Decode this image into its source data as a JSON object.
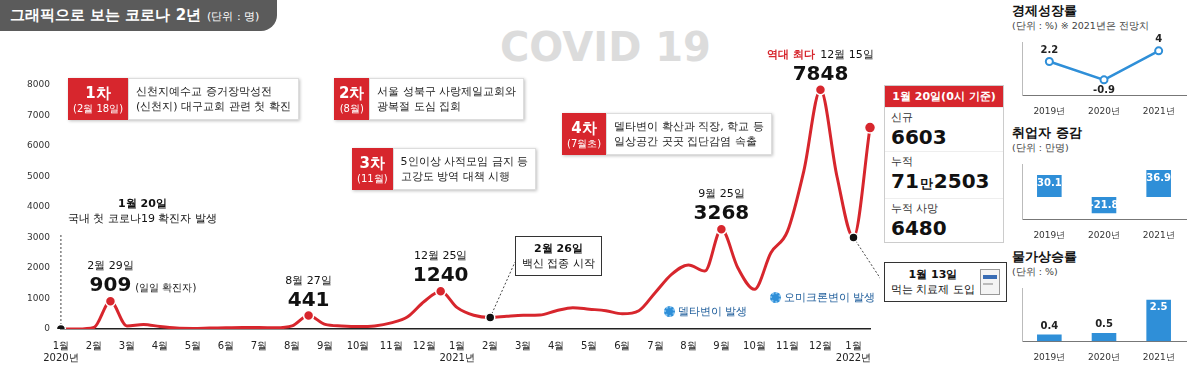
{
  "title": "그래픽으로 보는 코로나 2년",
  "subtitle": "(단위 : 명)",
  "watermark": "COVID 19",
  "chart_data": [
    {
      "type": "line",
      "categories": [
        "1월",
        null,
        "2월",
        null,
        "3월",
        null,
        "4월",
        null,
        "5월",
        null,
        "6월",
        null,
        "7월",
        null,
        "8월",
        null,
        "9월",
        null,
        "10월",
        null,
        "11월",
        null,
        "12월",
        null,
        "1월",
        null,
        "2월",
        null,
        "3월",
        null,
        "4월",
        null,
        "5월",
        null,
        "6월",
        null,
        "7월",
        null,
        "8월",
        null,
        "9월",
        null,
        "10월",
        null,
        "11월",
        null,
        "12월",
        null,
        "1월",
        null
      ],
      "x_year_labels": [
        "2020년",
        "2021년",
        "2022년"
      ],
      "values": [
        0,
        0,
        50,
        909,
        100,
        150,
        80,
        30,
        20,
        30,
        40,
        50,
        50,
        40,
        100,
        441,
        150,
        100,
        80,
        100,
        200,
        400,
        900,
        1240,
        700,
        450,
        380,
        420,
        450,
        460,
        600,
        700,
        650,
        600,
        500,
        600,
        1200,
        1800,
        2100,
        1900,
        3268,
        2000,
        1300,
        2500,
        3200,
        5200,
        7848,
        5000,
        3000,
        6603
      ],
      "color": "#d7262d",
      "ylim": [
        0,
        8000
      ],
      "yticks": [
        0,
        1000,
        2000,
        3000,
        4000,
        5000,
        6000,
        7000,
        8000
      ],
      "grid": false,
      "peaks": [
        {
          "date": "2월 29일",
          "value": 909,
          "note": "(일일 확진자)"
        },
        {
          "date": "8월 27일",
          "value": 441
        },
        {
          "date": "12월 25일",
          "value": 1240
        },
        {
          "date": "9월 25일",
          "value": 3268
        },
        {
          "date": "12월 15일",
          "value": 7848,
          "prefix": "역대 최다"
        }
      ]
    },
    {
      "type": "line",
      "title": "경제성장률",
      "subtitle": "(단위 : %) ※ 2021년은 전망치",
      "categories": [
        "2019년",
        "2020년",
        "2021년"
      ],
      "values": [
        2.2,
        -0.9,
        4
      ],
      "color": "#2f8fd8",
      "marker": "circle",
      "ylim": [
        -3.5,
        5.5
      ],
      "grid": false,
      "data_labels": true,
      "tick_labels": "x"
    },
    {
      "type": "bar",
      "title": "취업자 증감",
      "subtitle": "(단위 : 만명)",
      "categories": [
        "2019년",
        "2020년",
        "2021년"
      ],
      "values": [
        30.1,
        -21.8,
        36.9
      ],
      "color": "#2f8fd8",
      "ylim": [
        -30,
        45
      ],
      "grid": false,
      "data_labels": true,
      "tick_labels": "x"
    },
    {
      "type": "bar",
      "title": "물가상승률",
      "subtitle": "(단위 : %)",
      "categories": [
        "2019년",
        "2020년",
        "2021년"
      ],
      "values": [
        0.4,
        0.5,
        2.5
      ],
      "color": "#2f8fd8",
      "ylim": [
        0,
        3.2
      ],
      "grid": false,
      "data_labels": true,
      "tick_labels": "x"
    }
  ],
  "waves": [
    {
      "label": "1차",
      "date": "(2월 18일)",
      "lines": [
        "신천지예수교 증거장막성전",
        "(신천지) 대구교회 관련 첫 확진"
      ]
    },
    {
      "label": "2차",
      "date": "(8월)",
      "lines": [
        "서울 성북구 사랑제일교회와",
        "광복절 도심 집회"
      ]
    },
    {
      "label": "3차",
      "date": "(11월)",
      "lines": [
        "5인이상 사적모임 금지 등",
        "고강도 방역 대책 시행"
      ]
    },
    {
      "label": "4차",
      "date": "(7월초)",
      "lines": [
        "델타변이 확산과 직장, 학교 등",
        "일상공간 곳곳 집단감염 속출"
      ]
    }
  ],
  "events": [
    {
      "date": "1월 20일",
      "text": "국내 첫 코로나19 확진자 발생",
      "value": 0
    },
    {
      "date": "2월 26일",
      "text": "백신 접종 시작",
      "value": 380
    },
    {
      "date": "1월 13일",
      "text": "먹는 치료제 도입",
      "value": 3000
    }
  ],
  "variants": [
    "델타변이 발생",
    "오미크론변이 발생"
  ],
  "current_status": {
    "header": "1월 20일(0시 기준)",
    "items": [
      {
        "label": "신규",
        "value": 6603
      },
      {
        "label": "누적",
        "value": 712503,
        "value_label": "71만2503"
      },
      {
        "label": "누적 사망",
        "value": 6480
      }
    ]
  }
}
